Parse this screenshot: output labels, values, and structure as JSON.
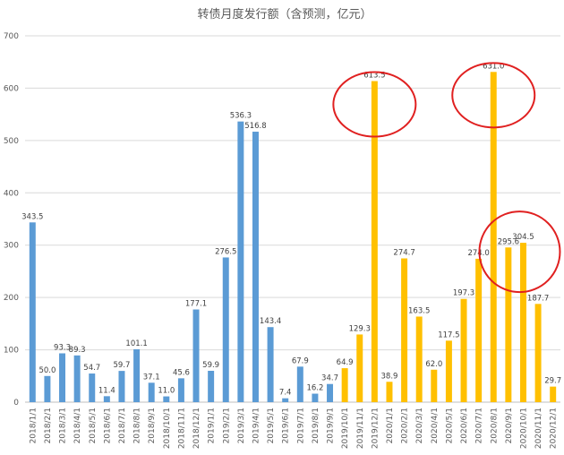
{
  "chart_data": {
    "type": "bar",
    "title": "转债月度发行额（含预测，亿元）",
    "xlabel": "",
    "ylabel": "",
    "ylim": [
      0,
      700
    ],
    "yticks": [
      0,
      100,
      200,
      300,
      400,
      500,
      600,
      700
    ],
    "grid": true,
    "legend": "none",
    "categories": [
      "2018/1/1",
      "2018/2/1",
      "2018/3/1",
      "2018/4/1",
      "2018/5/1",
      "2018/6/1",
      "2018/7/1",
      "2018/8/1",
      "2018/9/1",
      "2018/10/1",
      "2018/11/1",
      "2018/12/1",
      "2019/1/1",
      "2019/2/1",
      "2019/3/1",
      "2019/4/1",
      "2019/5/1",
      "2019/6/1",
      "2019/7/1",
      "2019/8/1",
      "2019/9/1",
      "2019/10/1",
      "2019/11/1",
      "2019/12/1",
      "2020/1/1",
      "2020/2/1",
      "2020/3/1",
      "2020/4/1",
      "2020/5/1",
      "2020/6/1",
      "2020/7/1",
      "2020/8/1",
      "2020/9/1",
      "2020/10/1",
      "2020/11/1",
      "2020/12/1"
    ],
    "values": [
      343.5,
      50.0,
      93.3,
      89.3,
      54.7,
      11.4,
      59.7,
      101.1,
      37.1,
      11.0,
      45.6,
      177.1,
      59.9,
      276.5,
      536.3,
      516.8,
      143.4,
      7.4,
      67.9,
      16.2,
      34.7,
      64.9,
      129.3,
      613.5,
      38.9,
      274.7,
      163.5,
      62.0,
      117.5,
      197.3,
      274.0,
      631.0,
      295.6,
      304.5,
      187.7,
      29.7
    ],
    "labels": [
      "343.5",
      "50.0",
      "93.3",
      "89.3",
      "54.7",
      "11.4",
      "59.7",
      "101.1",
      "37.1",
      "11.0",
      "45.6",
      "177.1",
      "59.9",
      "276.5",
      "536.3",
      "516.8",
      "143.4",
      "7.4",
      "67.9",
      "16.2",
      "34.7",
      "64.9",
      "129.3",
      "613.5",
      "38.9",
      "274.7",
      "163.5",
      "62.0",
      "117.5",
      "197.3",
      "274.0",
      "631.0",
      "295.6",
      "304.5",
      "187.7",
      "29.7"
    ],
    "colors": {
      "actual": "#5b9bd5",
      "forecast": "#ffc000",
      "highlight": "#e02020",
      "grid": "#d9d9d9",
      "axis": "#bfbfbf"
    },
    "forecast_start_index": 21,
    "highlights": [
      {
        "category_index": 23,
        "value": 613.5
      },
      {
        "category_index": 31,
        "value": 631.0
      },
      {
        "category_index": 33,
        "value": 304.5
      }
    ]
  }
}
